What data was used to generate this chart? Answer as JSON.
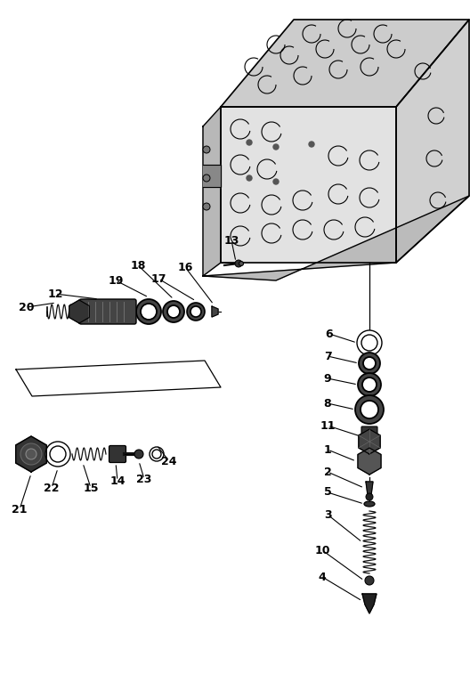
{
  "bg_color": "#ffffff",
  "line_color": "#000000",
  "part_color": "#111111",
  "figsize": [
    5.28,
    7.66
  ],
  "dpi": 100,
  "label_fontsize": 9,
  "label_fontsize_large": 10
}
